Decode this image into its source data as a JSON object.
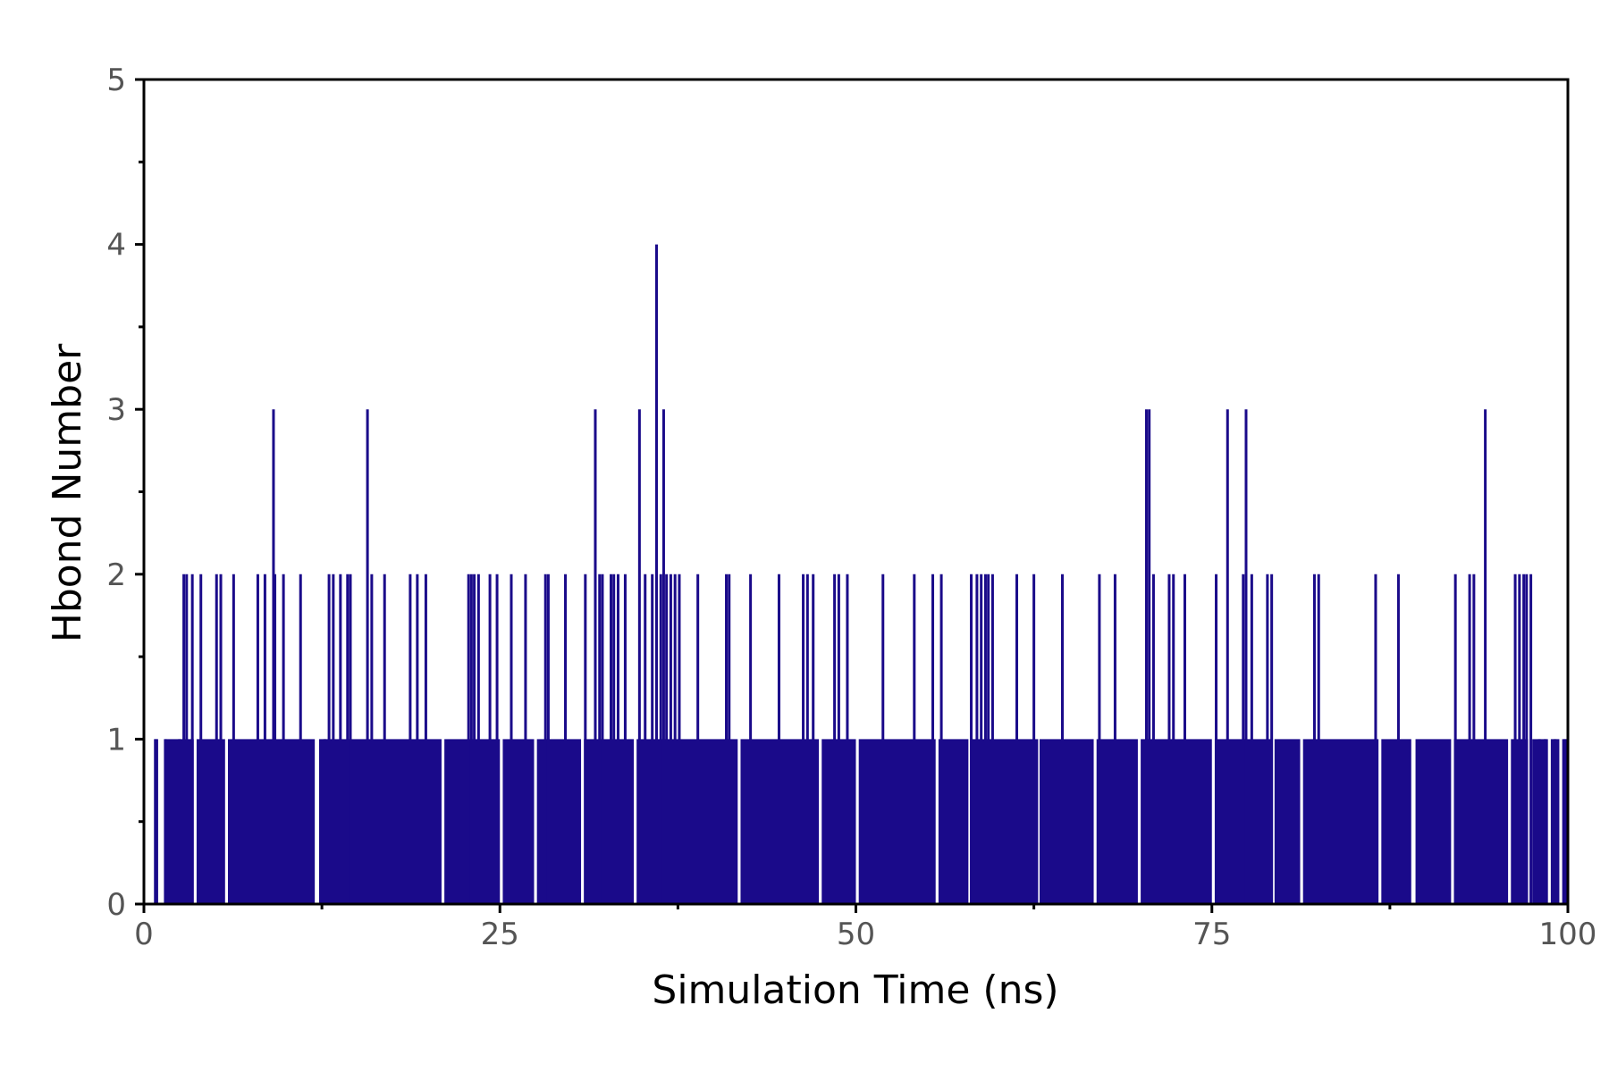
{
  "chart_data": {
    "type": "line",
    "title": "",
    "xlabel": "Simulation Time (ns)",
    "ylabel": "Hbond Number",
    "xlim": [
      0,
      100
    ],
    "ylim": [
      0,
      5
    ],
    "x_ticks": [
      0,
      25,
      50,
      75,
      100
    ],
    "x_tick_labels": [
      "0",
      "25",
      "50",
      "75",
      "100"
    ],
    "y_ticks": [
      0,
      1,
      2,
      3,
      4,
      5
    ],
    "y_tick_labels": [
      "0",
      "1",
      "2",
      "3",
      "4",
      "5"
    ],
    "grid": false,
    "legend": "none",
    "line_color": "#1a0a8a",
    "series": [
      {
        "x": [
          0.8,
          1.5,
          2.5,
          2.8,
          3.0,
          3.4,
          4.0,
          5.1,
          5.4,
          6.3,
          8.0,
          8.5,
          9.1,
          9.2,
          9.8,
          11.0,
          12.7,
          13.0,
          13.3,
          13.8,
          14.3,
          14.5,
          15.7,
          16.0,
          16.9,
          18.7,
          19.2,
          19.8,
          22.8,
          23.0,
          23.2,
          23.5,
          24.3,
          24.8,
          25.8,
          26.8,
          28.2,
          28.4,
          29.6,
          31.0,
          31.7,
          32.0,
          32.2,
          32.8,
          33.0,
          33.3,
          33.8,
          34.8,
          35.2,
          35.7,
          36.0,
          36.3,
          36.5,
          36.7,
          37.0,
          37.3,
          37.6,
          38.9,
          40.9,
          41.1,
          42.6,
          44.6,
          46.3,
          46.6,
          47.0,
          48.5,
          48.8,
          49.4,
          51.9,
          54.1,
          55.4,
          56.0,
          58.1,
          58.5,
          58.8,
          59.1,
          59.3,
          59.6,
          61.3,
          62.5,
          64.5,
          67.1,
          68.2,
          70.4,
          70.6,
          70.9,
          72.0,
          72.3,
          73.1,
          75.3,
          76.1,
          77.2,
          77.4,
          77.8,
          78.9,
          79.2,
          82.2,
          82.5,
          86.5,
          88.1,
          92.1,
          93.1,
          93.4,
          94.2,
          96.3,
          96.6,
          96.9,
          97.1,
          97.4,
          98.0,
          98.4,
          99.1,
          99.8
        ],
        "y": [
          1,
          1,
          1,
          2,
          2,
          2,
          2,
          2,
          2,
          2,
          2,
          2,
          3,
          2,
          2,
          2,
          1,
          2,
          2,
          2,
          2,
          2,
          3,
          2,
          2,
          2,
          2,
          2,
          2,
          2,
          2,
          2,
          2,
          2,
          2,
          2,
          2,
          2,
          2,
          2,
          3,
          2,
          2,
          2,
          2,
          2,
          2,
          3,
          2,
          2,
          4,
          2,
          3,
          2,
          2,
          2,
          2,
          2,
          2,
          2,
          2,
          2,
          2,
          2,
          2,
          2,
          2,
          2,
          2,
          2,
          2,
          2,
          2,
          2,
          2,
          2,
          2,
          2,
          2,
          2,
          2,
          2,
          2,
          3,
          3,
          2,
          2,
          2,
          2,
          2,
          3,
          2,
          3,
          2,
          2,
          2,
          2,
          2,
          2,
          2,
          2,
          2,
          2,
          3,
          2,
          2,
          2,
          2,
          2,
          1,
          1,
          1,
          1
        ]
      }
    ],
    "baseline": {
      "value": 1,
      "description_fill": "dense fluctuation between 0 and 1 across the run",
      "zero_gaps": [
        [
          0,
          0.8
        ],
        [
          1.0,
          1.5
        ],
        [
          3.5,
          3.7
        ],
        [
          5.7,
          5.9
        ],
        [
          12.0,
          12.3
        ],
        [
          20.9,
          21.1
        ],
        [
          25.0,
          25.2
        ],
        [
          27.4,
          27.6
        ],
        [
          30.7,
          30.9
        ],
        [
          34.4,
          34.6
        ],
        [
          41.7,
          41.9
        ],
        [
          47.4,
          47.6
        ],
        [
          50.0,
          50.2
        ],
        [
          55.6,
          55.8
        ],
        [
          57.9,
          58.1
        ],
        [
          62.8,
          62.9
        ],
        [
          66.7,
          66.9
        ],
        [
          69.8,
          70.0
        ],
        [
          75.0,
          75.2
        ],
        [
          79.2,
          79.4
        ],
        [
          81.2,
          81.4
        ],
        [
          86.7,
          86.9
        ],
        [
          89.0,
          89.3
        ],
        [
          91.8,
          92.0
        ],
        [
          95.8,
          96.0
        ],
        [
          97.2,
          97.5
        ],
        [
          98.6,
          98.8
        ],
        [
          99.4,
          99.6
        ]
      ]
    }
  }
}
